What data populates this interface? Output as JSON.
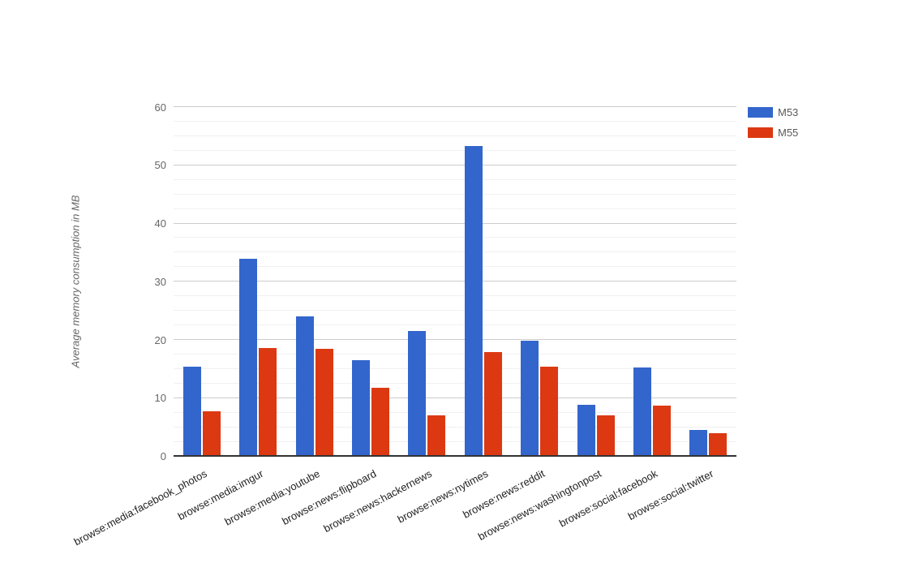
{
  "chart_data": {
    "type": "bar",
    "title": "",
    "xlabel": "",
    "ylabel": "Average memory consumption in MB",
    "ylim": [
      0,
      60
    ],
    "yticks": [
      0,
      10,
      20,
      30,
      40,
      50,
      60
    ],
    "minor_gridline_step": 2.5,
    "major_gridline_step": 10,
    "grid": true,
    "legend_position": "top-right",
    "categories": [
      "browse:media:facebook_photos",
      "browse:media:imgur",
      "browse:media:youtube",
      "browse:news:flipboard",
      "browse:news:hackernews",
      "browse:news:nytimes",
      "browse:news:reddit",
      "browse:news:washingtonpost",
      "browse:social:facebook",
      "browse:social:twitter"
    ],
    "series": [
      {
        "name": "M53",
        "color": "#3366cc",
        "values": [
          15.3,
          33.9,
          24.0,
          16.4,
          21.4,
          53.3,
          19.8,
          8.8,
          15.2,
          4.5
        ]
      },
      {
        "name": "M55",
        "color": "#dc3912",
        "values": [
          7.6,
          18.5,
          18.4,
          11.7,
          7.0,
          17.8,
          15.4,
          6.9,
          8.7,
          3.9
        ]
      }
    ]
  },
  "colors": {
    "background": "#ffffff",
    "major_gridline": "#cccccc",
    "minor_gridline": "#f0f0f0",
    "axis_line": "#333333",
    "y_tick_text": "#666666",
    "x_label_text": "#222222",
    "legend_text": "#595959"
  }
}
